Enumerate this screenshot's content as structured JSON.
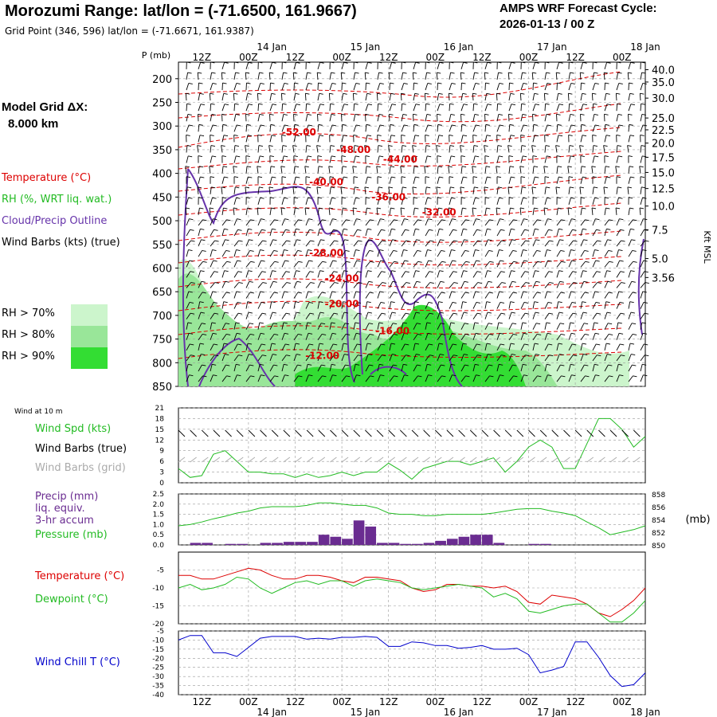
{
  "header": {
    "title": "Morozumi Range:  lat/lon = (-71.6500, 161.9667)",
    "subtitle": "Grid Point (346, 596) lat/lon = (-71.6671, 161.9387)",
    "cycle_line1": "AMPS WRF Forecast Cycle:",
    "cycle_line2": "2026-01-13 / 00  Z",
    "grid_label_1": "Model Grid ΔX:",
    "grid_label_2": "8.000 km"
  },
  "legend": {
    "temperature": "Temperature (°C)",
    "rh": "RH (%, WRT liq. wat.)",
    "cloud": "Cloud/Precip Outline",
    "wind": "Wind Barbs (kts) (true)",
    "rh70": "RH > 70%",
    "rh80": "RH > 80%",
    "rh90": "RH > 90%"
  },
  "colors": {
    "temp": "#dd0000",
    "cloud": "#6633aa",
    "wind": "#000000",
    "rh70": "#ccf5cc",
    "rh80": "#99e699",
    "rh90": "#33dd33",
    "spd": "#22bb22",
    "precip": "#6a2c91",
    "pressure": "#22bb22",
    "t2m": "#dd0000",
    "dew": "#22bb22",
    "chill": "#0000cc",
    "grid": "#999999",
    "wind_grid": "#aaaaaa"
  },
  "chart_data": [
    {
      "type": "cross-section",
      "name": "upper-air",
      "x_top_labels": [
        "12Z",
        "00Z",
        "12Z",
        "00Z",
        "12Z",
        "00Z",
        "12Z",
        "00Z",
        "12Z",
        "00Z"
      ],
      "date_labels": [
        "14 Jan",
        "15 Jan",
        "16 Jan",
        "17 Jan",
        "18 Jan"
      ],
      "yaxis_title": "P (mb)",
      "y_ticks": [
        200,
        250,
        300,
        350,
        400,
        450,
        500,
        550,
        600,
        650,
        700,
        750,
        800,
        850
      ],
      "right_axis_title": "Kft MSL",
      "right_ticks": [
        "40.0",
        "35.0",
        "30.0",
        "25.0",
        "22.5",
        "20.0",
        "17.5",
        "15.0",
        "12.5",
        "10.0",
        "7.5",
        "5.0",
        "3.56"
      ],
      "right_tick_pressure": [
        181,
        207,
        241,
        283,
        308,
        336,
        366,
        398,
        432,
        469,
        519,
        580,
        620
      ],
      "ylim": [
        165,
        850
      ],
      "x_range_hours": [
        0,
        120
      ],
      "temp_labels": [
        {
          "text": "-52.00",
          "h": 31,
          "p": 313
        },
        {
          "text": "-48.00",
          "h": 45,
          "p": 350
        },
        {
          "text": "-44.00",
          "h": 57,
          "p": 370
        },
        {
          "text": "-40.00",
          "h": 38,
          "p": 418
        },
        {
          "text": "-36.00",
          "h": 54,
          "p": 450
        },
        {
          "text": "-32.00",
          "h": 67,
          "p": 482
        },
        {
          "text": "-28.00",
          "h": 38,
          "p": 568
        },
        {
          "text": "-24.00",
          "h": 42,
          "p": 622
        },
        {
          "text": "-20.00",
          "h": 42,
          "p": 676
        },
        {
          "text": "-16.00",
          "h": 55,
          "p": 733
        },
        {
          "text": "-12.00",
          "h": 37,
          "p": 785
        }
      ]
    },
    {
      "type": "line",
      "name": "wind-10m",
      "label_small": "Wind at 10 m",
      "legend": [
        "Wind Spd (kts)",
        "Wind Barbs (true)",
        "Wind Barbs (grid)"
      ],
      "ylim": [
        0,
        21
      ],
      "y_ticks": [
        0,
        3,
        6,
        9,
        12,
        15,
        18,
        21
      ],
      "x": [
        0,
        3,
        6,
        9,
        12,
        15,
        18,
        21,
        24,
        27,
        30,
        33,
        36,
        39,
        42,
        45,
        48,
        51,
        54,
        57,
        60,
        63,
        66,
        69,
        72,
        75,
        78,
        81,
        84,
        87,
        90,
        93,
        96,
        99,
        102,
        105,
        108,
        111,
        114,
        117,
        120
      ],
      "values": [
        4,
        1.5,
        2,
        8,
        9,
        6,
        3,
        3,
        2.5,
        2.5,
        1.5,
        2.5,
        1.5,
        2,
        3,
        2,
        3,
        3,
        5.5,
        3.5,
        1,
        4,
        5,
        6,
        6,
        5,
        6,
        7,
        3,
        6,
        10,
        12,
        10,
        4,
        4,
        11,
        18,
        18,
        15,
        10,
        13
      ]
    },
    {
      "type": "bar+line",
      "name": "precip-pressure",
      "legend": [
        "Precip (mm)",
        "liq. equiv.",
        "3-hr accum",
        "Pressure (mb)"
      ],
      "precip_ylim": [
        0,
        2.5
      ],
      "precip_ticks": [
        "0.0",
        "0.5",
        "1.0",
        "1.5",
        "2.0",
        "2.5"
      ],
      "pressure_ylim": [
        850,
        858
      ],
      "pressure_ticks": [
        850,
        852,
        854,
        856,
        858
      ],
      "pressure_unit": "(mb)",
      "precip_x": [
        0,
        3,
        6,
        9,
        12,
        15,
        18,
        21,
        24,
        27,
        30,
        33,
        36,
        39,
        42,
        45,
        48,
        51,
        54,
        57,
        60,
        63,
        66,
        69,
        72,
        75,
        78,
        81,
        84,
        87,
        90,
        93,
        96,
        99,
        102,
        105,
        108,
        111,
        114,
        117
      ],
      "precip": [
        0,
        0.1,
        0.1,
        0,
        0.05,
        0.05,
        0,
        0.1,
        0.1,
        0.15,
        0.15,
        0.15,
        0.5,
        0.4,
        0.3,
        1.2,
        0.9,
        0.1,
        0.1,
        0.05,
        0.05,
        0.1,
        0.2,
        0.3,
        0.4,
        0.5,
        0.5,
        0.1,
        0,
        0,
        0.05,
        0.05,
        0,
        0,
        0,
        0,
        0,
        0,
        0,
        0
      ],
      "pressure_x": [
        0,
        3,
        6,
        9,
        12,
        15,
        18,
        21,
        24,
        27,
        30,
        33,
        36,
        39,
        42,
        45,
        48,
        51,
        54,
        57,
        60,
        63,
        66,
        69,
        72,
        75,
        78,
        81,
        84,
        87,
        90,
        93,
        96,
        99,
        102,
        105,
        108,
        111,
        114,
        117,
        120
      ],
      "pressure": [
        853.0,
        853.2,
        853.6,
        854.1,
        854.5,
        855.0,
        855.3,
        855.8,
        856.0,
        856.0,
        856.0,
        856.2,
        856.6,
        856.6,
        856.4,
        856.2,
        856.2,
        855.8,
        855.0,
        854.8,
        854.8,
        854.6,
        854.6,
        854.8,
        854.8,
        854.8,
        854.8,
        855.0,
        855.3,
        855.6,
        855.7,
        855.7,
        855.3,
        855.0,
        854.6,
        853.6,
        852.7,
        851.6,
        852.0,
        852.4,
        853.0
      ]
    },
    {
      "type": "line",
      "name": "temperature-dewpoint",
      "legend": [
        "Temperature (°C)",
        "Dewpoint (°C)"
      ],
      "ylim": [
        -20,
        0
      ],
      "y_ticks": [
        -20,
        -15,
        -10,
        -5
      ],
      "x": [
        0,
        3,
        6,
        9,
        12,
        15,
        18,
        21,
        24,
        27,
        30,
        33,
        36,
        39,
        42,
        45,
        48,
        51,
        54,
        57,
        60,
        63,
        66,
        69,
        72,
        75,
        78,
        81,
        84,
        87,
        90,
        93,
        96,
        99,
        102,
        105,
        108,
        111,
        114,
        117,
        120
      ],
      "series": [
        {
          "name": "Temperature",
          "values": [
            -6.5,
            -6.5,
            -7.5,
            -7.5,
            -6.5,
            -5.5,
            -4.5,
            -5,
            -6.5,
            -7.5,
            -7.5,
            -6.5,
            -6.5,
            -7,
            -8,
            -8.5,
            -7,
            -7,
            -7.5,
            -8,
            -10,
            -11,
            -10.5,
            -9,
            -9,
            -9.5,
            -9.5,
            -10,
            -9.5,
            -11,
            -14,
            -14.5,
            -12,
            -12.5,
            -13,
            -14.5,
            -17,
            -18,
            -16,
            -13.5,
            -10
          ]
        },
        {
          "name": "Dewpoint",
          "values": [
            -10,
            -9,
            -10.5,
            -10,
            -9,
            -7,
            -7.5,
            -10,
            -11.5,
            -10,
            -8.5,
            -8,
            -9,
            -8,
            -8,
            -9.5,
            -8,
            -7.5,
            -8,
            -8.5,
            -10,
            -10.5,
            -10,
            -9.5,
            -9,
            -9.5,
            -10,
            -12.5,
            -11.5,
            -13,
            -16.5,
            -17,
            -16,
            -15,
            -14.5,
            -14.5,
            -17,
            -19.5,
            -19.5,
            -17,
            -13.5
          ]
        }
      ]
    },
    {
      "type": "line",
      "name": "wind-chill",
      "legend": [
        "Wind Chill T (°C)"
      ],
      "ylim": [
        -40,
        -5
      ],
      "y_ticks": [
        -40,
        -35,
        -30,
        -25,
        -20,
        -15,
        -10,
        -5
      ],
      "x": [
        0,
        3,
        6,
        9,
        12,
        15,
        18,
        21,
        24,
        27,
        30,
        33,
        36,
        39,
        42,
        45,
        48,
        51,
        54,
        57,
        60,
        63,
        66,
        69,
        72,
        75,
        78,
        81,
        84,
        87,
        90,
        93,
        96,
        99,
        102,
        105,
        108,
        111,
        114,
        117,
        120
      ],
      "values": [
        -10,
        -7.5,
        -7.5,
        -17,
        -17,
        -19,
        -14,
        -9,
        -8,
        -8,
        -8,
        -9.5,
        -9,
        -9.5,
        -8.5,
        -8.5,
        -8,
        -8.5,
        -13.5,
        -13.5,
        -11,
        -11.5,
        -13,
        -13,
        -14.5,
        -14,
        -13,
        -15,
        -15,
        -14.5,
        -18,
        -28,
        -26.5,
        -24.5,
        -11,
        -11,
        -19.5,
        -29.5,
        -35.5,
        -34.5,
        -28
      ]
    }
  ]
}
